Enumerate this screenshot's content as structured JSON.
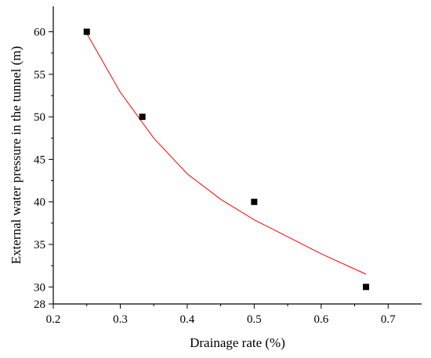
{
  "chart_data": {
    "type": "scatter",
    "xlabel": "Drainage rate (%)",
    "ylabel": "External water pressure in the tunnel (m)",
    "xlim": [
      0.2,
      0.75
    ],
    "ylim": [
      28,
      63
    ],
    "x_ticks": [
      0.2,
      0.3,
      0.4,
      0.5,
      0.6,
      0.7
    ],
    "x_tick_labels": [
      "0.2",
      "0.3",
      "0.4",
      "0.5",
      "0.6",
      "0.7"
    ],
    "y_ticks": [
      28,
      30,
      35,
      40,
      45,
      50,
      55,
      60
    ],
    "y_tick_labels": [
      "28",
      "30",
      "35",
      "40",
      "45",
      "50",
      "55",
      "60"
    ],
    "grid": false,
    "legend": "none",
    "series": [
      {
        "kind": "points",
        "marker": "square",
        "color": "#000000",
        "x": [
          0.25,
          0.333,
          0.5,
          0.667
        ],
        "y": [
          60,
          50,
          40,
          30
        ]
      },
      {
        "kind": "fitted-curve",
        "color": "#ff0000",
        "x": [
          0.25,
          0.3,
          0.35,
          0.4,
          0.45,
          0.5,
          0.55,
          0.6,
          0.667
        ],
        "y": [
          59.8,
          52.9,
          47.5,
          43.3,
          40.3,
          37.9,
          35.9,
          33.9,
          31.5
        ]
      }
    ]
  }
}
